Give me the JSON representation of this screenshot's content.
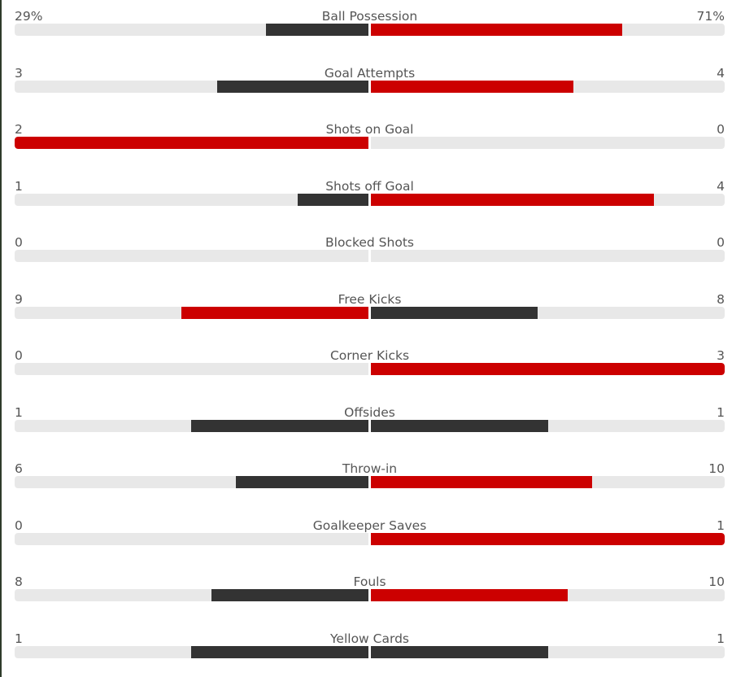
{
  "colors": {
    "leader": "#cc0000",
    "trailer": "#333333",
    "track": "#e8e8e8",
    "text": "#555555"
  },
  "stats": [
    {
      "name": "Ball Possession",
      "home_display": "29%",
      "away_display": "71%",
      "home_fill": 0.29,
      "away_fill": 0.71,
      "leader": "away"
    },
    {
      "name": "Goal Attempts",
      "home_display": "3",
      "away_display": "4",
      "home_fill": 0.4286,
      "away_fill": 0.5714,
      "leader": "away"
    },
    {
      "name": "Shots on Goal",
      "home_display": "2",
      "away_display": "0",
      "home_fill": 1.0,
      "away_fill": 0.0,
      "leader": "home"
    },
    {
      "name": "Shots off Goal",
      "home_display": "1",
      "away_display": "4",
      "home_fill": 0.2,
      "away_fill": 0.8,
      "leader": "away"
    },
    {
      "name": "Blocked Shots",
      "home_display": "0",
      "away_display": "0",
      "home_fill": 0.0,
      "away_fill": 0.0,
      "leader": "none"
    },
    {
      "name": "Free Kicks",
      "home_display": "9",
      "away_display": "8",
      "home_fill": 0.5294,
      "away_fill": 0.4706,
      "leader": "home"
    },
    {
      "name": "Corner Kicks",
      "home_display": "0",
      "away_display": "3",
      "home_fill": 0.0,
      "away_fill": 1.0,
      "leader": "away"
    },
    {
      "name": "Offsides",
      "home_display": "1",
      "away_display": "1",
      "home_fill": 0.5,
      "away_fill": 0.5,
      "leader": "none"
    },
    {
      "name": "Throw-in",
      "home_display": "6",
      "away_display": "10",
      "home_fill": 0.375,
      "away_fill": 0.625,
      "leader": "away"
    },
    {
      "name": "Goalkeeper Saves",
      "home_display": "0",
      "away_display": "1",
      "home_fill": 0.0,
      "away_fill": 1.0,
      "leader": "away"
    },
    {
      "name": "Fouls",
      "home_display": "8",
      "away_display": "10",
      "home_fill": 0.4444,
      "away_fill": 0.5556,
      "leader": "away"
    },
    {
      "name": "Yellow Cards",
      "home_display": "1",
      "away_display": "1",
      "home_fill": 0.5,
      "away_fill": 0.5,
      "leader": "none"
    }
  ]
}
